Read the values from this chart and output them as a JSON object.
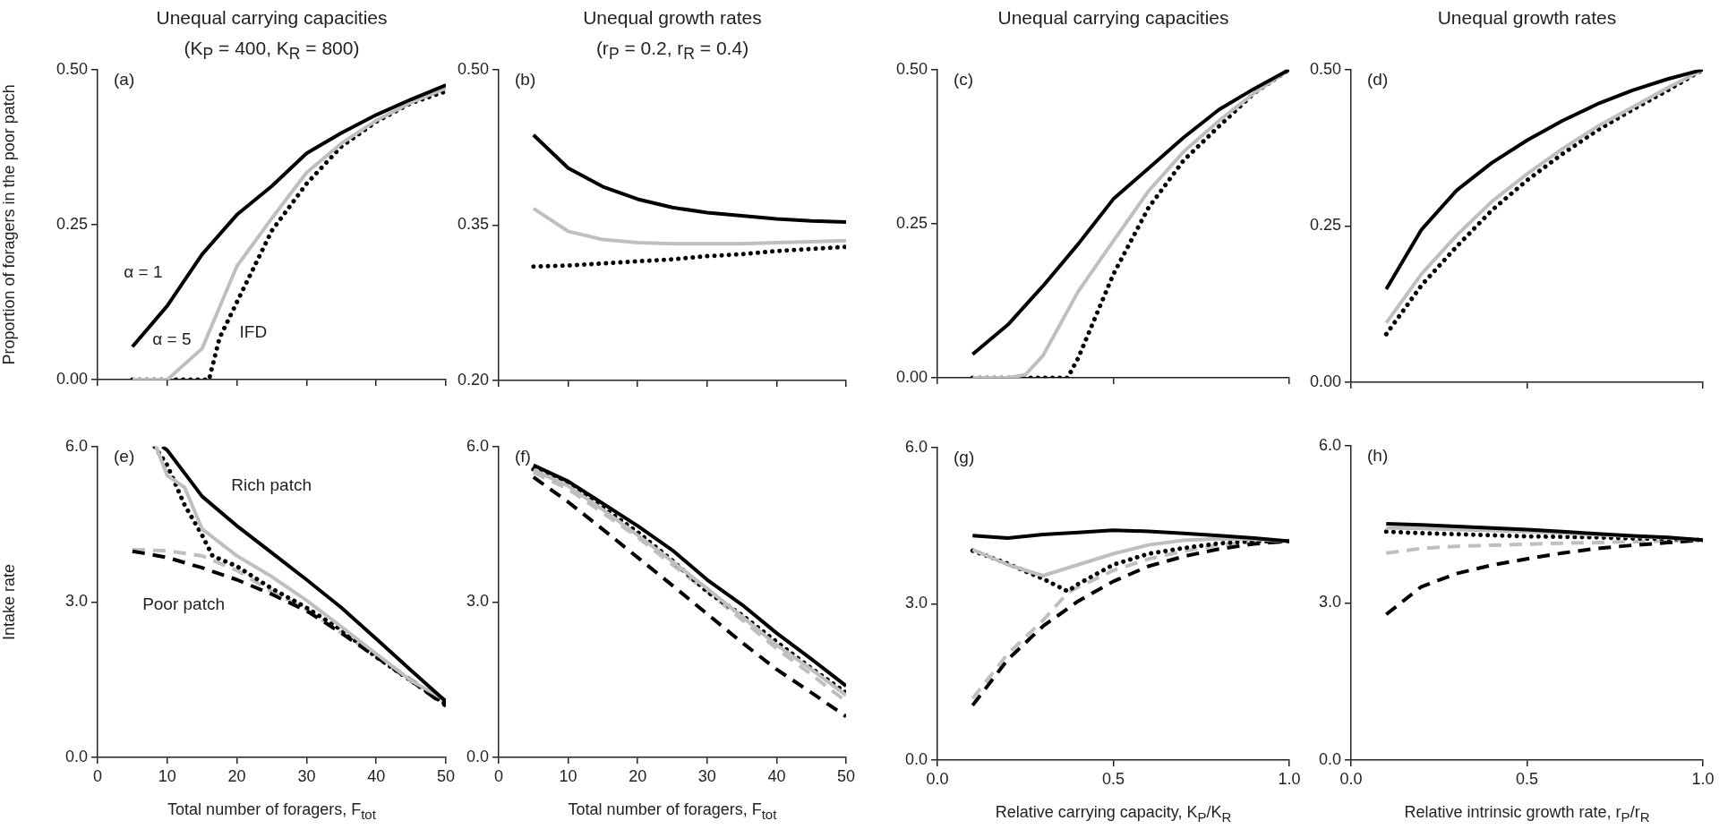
{
  "chart_data": [
    {
      "type": "line",
      "title": "Unequal carrying capacities",
      "subtitle": "(K$_{P}$ = 400, K$_{R}$ = 800)",
      "ylabel": "Proportion of foragers in the poor patch",
      "x": [
        5,
        10,
        15,
        20,
        25,
        30,
        35,
        40,
        45,
        50
      ],
      "xlim": [
        0,
        50
      ],
      "xticks": [
        0,
        10,
        20,
        30,
        40,
        50
      ],
      "ylim": [
        0,
        0.5
      ],
      "yticks": [
        {
          "value": 0,
          "label": "0.00"
        },
        {
          "value": 0.25,
          "label": "0.25"
        },
        {
          "value": 0.5,
          "label": "0.50"
        }
      ],
      "tick_labels": "y",
      "annotations": [
        "(a)",
        "α = 1",
        "α = 5",
        "IFD"
      ],
      "series": [
        {
          "color": "#000000",
          "line_style": "solid",
          "values": [
            0.053,
            0.119,
            0.202,
            0.266,
            0.312,
            0.365,
            0.398,
            0.427,
            0.452,
            0.475
          ]
        },
        {
          "color": "#bfbfbf",
          "line_style": "solid",
          "values": [
            0,
            0,
            0.05,
            0.183,
            0.26,
            0.334,
            0.381,
            0.418,
            0.447,
            0.47
          ]
        },
        {
          "color": "#000000",
          "line_style": "dotted",
          "x": [
            5,
            10,
            15,
            16,
            17.5,
            20,
            25,
            30,
            35,
            40,
            45,
            50
          ],
          "values": [
            0,
            0,
            0,
            0,
            0.067,
            0.125,
            0.24,
            0.316,
            0.376,
            0.416,
            0.446,
            0.465
          ]
        }
      ]
    },
    {
      "type": "line",
      "title": "Unequal growth rates",
      "subtitle": "(r$_{P}$ = 0.2, r$_{R}$ = 0.4)",
      "x": [
        5,
        10,
        15,
        20,
        25,
        30,
        35,
        40,
        45,
        50
      ],
      "xlim": [
        0,
        50
      ],
      "xticks": [
        0,
        10,
        20,
        30,
        40,
        50
      ],
      "ylim": [
        0.2,
        0.5
      ],
      "yticks": [
        {
          "value": 0.2,
          "label": "0.20"
        },
        {
          "value": 0.35,
          "label": "0.35"
        },
        {
          "value": 0.5,
          "label": "0.50"
        }
      ],
      "tick_labels": "y",
      "annotations": [
        "(b)"
      ],
      "series": [
        {
          "color": "#000000",
          "line_style": "solid",
          "values": [
            0.437,
            0.405,
            0.387,
            0.375,
            0.367,
            0.362,
            0.359,
            0.356,
            0.354,
            0.353
          ]
        },
        {
          "color": "#bfbfbf",
          "line_style": "solid",
          "values": [
            0.366,
            0.344,
            0.336,
            0.333,
            0.332,
            0.332,
            0.332,
            0.333,
            0.334,
            0.335
          ]
        },
        {
          "color": "#000000",
          "line_style": "dotted",
          "values": [
            0.31,
            0.311,
            0.313,
            0.315,
            0.317,
            0.32,
            0.322,
            0.325,
            0.327,
            0.329
          ]
        }
      ]
    },
    {
      "type": "line",
      "title": "Unequal carrying capacities",
      "x": [
        0.1,
        0.2,
        0.3,
        0.4,
        0.5,
        0.6,
        0.7,
        0.8,
        0.9,
        1.0
      ],
      "xlim": [
        0,
        1
      ],
      "xticks": [
        0,
        0.5,
        1
      ],
      "ylim": [
        0,
        0.5
      ],
      "yticks": [
        {
          "value": 0,
          "label": "0.00"
        },
        {
          "value": 0.25,
          "label": "0.25"
        },
        {
          "value": 0.5,
          "label": "0.50"
        }
      ],
      "tick_labels": "y",
      "annotations": [
        "(c)"
      ],
      "series": [
        {
          "color": "#000000",
          "line_style": "solid",
          "values": [
            0.038,
            0.086,
            0.149,
            0.217,
            0.29,
            0.34,
            0.39,
            0.435,
            0.469,
            0.5
          ]
        },
        {
          "color": "#bfbfbf",
          "line_style": "solid",
          "x": [
            0.1,
            0.2,
            0.25,
            0.3,
            0.4,
            0.5,
            0.6,
            0.7,
            0.8,
            0.9,
            1.0
          ],
          "values": [
            0,
            0,
            0.005,
            0.036,
            0.14,
            0.222,
            0.303,
            0.367,
            0.417,
            0.462,
            0.5
          ]
        },
        {
          "color": "#000000",
          "line_style": "dotted",
          "x": [
            0.1,
            0.2,
            0.3,
            0.37,
            0.4,
            0.5,
            0.6,
            0.7,
            0.8,
            0.9,
            1.0
          ],
          "values": [
            0,
            0,
            0,
            0,
            0.032,
            0.168,
            0.276,
            0.353,
            0.408,
            0.462,
            0.5
          ]
        }
      ]
    },
    {
      "type": "line",
      "title": "Unequal growth rates",
      "x": [
        0.1,
        0.2,
        0.3,
        0.4,
        0.5,
        0.6,
        0.7,
        0.8,
        0.9,
        1.0
      ],
      "xlim": [
        0,
        1
      ],
      "xticks": [
        0,
        0.5,
        1
      ],
      "ylim": [
        0,
        0.5
      ],
      "yticks": [
        {
          "value": 0,
          "label": "0.00"
        },
        {
          "value": 0.25,
          "label": "0.25"
        },
        {
          "value": 0.5,
          "label": "0.50"
        }
      ],
      "tick_labels": "y",
      "annotations": [
        "(d)"
      ],
      "series": [
        {
          "color": "#000000",
          "line_style": "solid",
          "values": [
            0.149,
            0.244,
            0.307,
            0.351,
            0.387,
            0.418,
            0.445,
            0.467,
            0.485,
            0.5
          ]
        },
        {
          "color": "#bfbfbf",
          "line_style": "solid",
          "values": [
            0.095,
            0.173,
            0.235,
            0.289,
            0.333,
            0.373,
            0.409,
            0.44,
            0.471,
            0.5
          ]
        },
        {
          "color": "#000000",
          "line_style": "dotted",
          "values": [
            0.077,
            0.155,
            0.217,
            0.275,
            0.323,
            0.365,
            0.403,
            0.436,
            0.467,
            0.5
          ]
        }
      ]
    },
    {
      "type": "line",
      "xlabel": "Total number of foragers, F$_{tot}$",
      "ylabel": "Intake rate",
      "x": [
        5,
        10,
        15,
        20,
        25,
        30,
        35,
        40,
        45,
        50
      ],
      "xlim": [
        0,
        50
      ],
      "xticks": [
        0,
        10,
        20,
        30,
        40,
        50
      ],
      "ylim": [
        0,
        6
      ],
      "yticks": [
        {
          "value": 0,
          "label": "0.0"
        },
        {
          "value": 3,
          "label": "3.0"
        },
        {
          "value": 6,
          "label": "6.0"
        }
      ],
      "annotations": [
        "(e)",
        "Rich patch",
        "Poor patch"
      ],
      "series": [
        {
          "color": "#000000",
          "line_style": "solid",
          "x": [
            9.3,
            10,
            15,
            20,
            25,
            30,
            35,
            40,
            45,
            50
          ],
          "values": [
            6.0,
            5.93,
            5.04,
            4.47,
            3.95,
            3.43,
            2.89,
            2.29,
            1.68,
            1.08
          ]
        },
        {
          "color": "#bfbfbf",
          "line_style": "solid",
          "x": [
            8.4,
            10,
            12.5,
            15,
            20,
            25,
            30,
            35,
            40,
            45,
            50
          ],
          "values": [
            6.0,
            5.44,
            5.21,
            4.41,
            3.89,
            3.49,
            3.03,
            2.52,
            2.0,
            1.48,
            1.1
          ]
        },
        {
          "color": "#000000",
          "line_style": "dotted",
          "x": [
            8.2,
            10,
            12.5,
            15,
            16.5,
            20,
            25,
            30,
            35,
            40,
            45,
            50
          ],
          "values": [
            6.0,
            5.64,
            4.87,
            4.29,
            3.89,
            3.69,
            3.26,
            2.89,
            2.46,
            1.94,
            1.48,
            1.02
          ]
        },
        {
          "color": "#000000",
          "line_style": "dashed",
          "values": [
            3.98,
            3.86,
            3.66,
            3.43,
            3.15,
            2.83,
            2.4,
            1.94,
            1.48,
            0.99
          ]
        },
        {
          "color": "#bfbfbf",
          "line_style": "dashed",
          "values": [
            4.01,
            3.99,
            3.89,
            3.61,
            3.2,
            2.86,
            2.4,
            1.97,
            1.51,
            1.05
          ]
        }
      ]
    },
    {
      "type": "line",
      "xlabel": "Total number of foragers, F$_{tot}$",
      "x": [
        5,
        10,
        15,
        20,
        25,
        30,
        35,
        40,
        45,
        50
      ],
      "xlim": [
        0,
        50
      ],
      "xticks": [
        0,
        10,
        20,
        30,
        40,
        50
      ],
      "ylim": [
        0,
        6
      ],
      "yticks": [
        {
          "value": 0,
          "label": "0.0"
        },
        {
          "value": 3,
          "label": "3.0"
        },
        {
          "value": 6,
          "label": "6.0"
        }
      ],
      "annotations": [
        "(f)"
      ],
      "series": [
        {
          "color": "#000000",
          "line_style": "solid",
          "values": [
            5.64,
            5.33,
            4.9,
            4.47,
            4.0,
            3.43,
            2.95,
            2.4,
            1.9,
            1.38
          ]
        },
        {
          "color": "#bfbfbf",
          "line_style": "solid",
          "values": [
            5.55,
            5.24,
            4.78,
            4.29,
            3.78,
            3.26,
            2.72,
            2.17,
            1.7,
            1.2
          ]
        },
        {
          "color": "#000000",
          "line_style": "dotted",
          "values": [
            5.56,
            5.27,
            4.82,
            4.35,
            3.8,
            3.2,
            2.75,
            2.23,
            1.72,
            1.25
          ]
        },
        {
          "color": "#000000",
          "line_style": "dashed",
          "values": [
            5.41,
            4.93,
            4.4,
            3.86,
            3.32,
            2.77,
            2.22,
            1.7,
            1.25,
            0.79
          ]
        },
        {
          "color": "#bfbfbf",
          "line_style": "dashed",
          "values": [
            5.5,
            5.18,
            4.72,
            4.25,
            3.72,
            3.2,
            2.66,
            2.1,
            1.6,
            1.08
          ]
        }
      ]
    },
    {
      "type": "line",
      "xlabel": "Relative carrying capacity, K$_{P}$/K$_{R}$",
      "x": [
        0.1,
        0.2,
        0.3,
        0.4,
        0.5,
        0.6,
        0.7,
        0.8,
        0.9,
        1.0
      ],
      "xlim": [
        0,
        1
      ],
      "xticks": [
        {
          "value": 0,
          "label": "0.0"
        },
        {
          "value": 0.5,
          "label": "0.5"
        },
        {
          "value": 1,
          "label": "1.0"
        }
      ],
      "ylim": [
        0,
        6
      ],
      "yticks": [
        {
          "value": 0,
          "label": "0.0"
        },
        {
          "value": 3,
          "label": "3.0"
        },
        {
          "value": 6,
          "label": "6.0"
        }
      ],
      "annotations": [
        "(g)"
      ],
      "series": [
        {
          "color": "#000000",
          "line_style": "solid",
          "values": [
            4.31,
            4.26,
            4.33,
            4.37,
            4.41,
            4.39,
            4.35,
            4.31,
            4.26,
            4.2
          ]
        },
        {
          "color": "#bfbfbf",
          "line_style": "solid",
          "values": [
            4.04,
            3.75,
            3.54,
            3.75,
            3.96,
            4.13,
            4.22,
            4.25,
            4.24,
            4.2
          ]
        },
        {
          "color": "#000000",
          "line_style": "dotted",
          "x": [
            0.1,
            0.2,
            0.3,
            0.37,
            0.4,
            0.5,
            0.6,
            0.7,
            0.8,
            0.9,
            1.0
          ],
          "values": [
            4.02,
            3.77,
            3.48,
            3.24,
            3.38,
            3.75,
            3.96,
            4.07,
            4.16,
            4.2,
            4.2
          ]
        },
        {
          "color": "#000000",
          "line_style": "dashed",
          "values": [
            1.05,
            1.93,
            2.57,
            3.05,
            3.43,
            3.72,
            3.91,
            4.05,
            4.15,
            4.2
          ]
        },
        {
          "color": "#bfbfbf",
          "line_style": "dashed",
          "x": [
            0.1,
            0.2,
            0.3,
            0.37,
            0.4,
            0.5,
            0.6,
            0.7,
            0.8,
            0.9,
            1.0
          ],
          "values": [
            1.18,
            2.04,
            2.68,
            3.21,
            3.32,
            3.64,
            3.86,
            4.01,
            4.13,
            4.18,
            4.2
          ]
        }
      ]
    },
    {
      "type": "line",
      "xlabel": "Relative intrinsic growth rate, r$_{P}$/r$_{R}$",
      "x": [
        0.1,
        0.2,
        0.3,
        0.4,
        0.5,
        0.6,
        0.7,
        0.8,
        0.9,
        1.0
      ],
      "xlim": [
        0,
        1
      ],
      "xticks": [
        {
          "value": 0,
          "label": "0.0"
        },
        {
          "value": 0.5,
          "label": "0.5"
        },
        {
          "value": 1,
          "label": "1.0"
        }
      ],
      "ylim": [
        0,
        6
      ],
      "yticks": [
        {
          "value": 0,
          "label": "0.0"
        },
        {
          "value": 3,
          "label": "3.0"
        },
        {
          "value": 6,
          "label": "6.0"
        }
      ],
      "annotations": [
        "(h)"
      ],
      "series": [
        {
          "color": "#000000",
          "line_style": "solid",
          "values": [
            4.51,
            4.49,
            4.46,
            4.43,
            4.4,
            4.36,
            4.32,
            4.28,
            4.25,
            4.2
          ]
        },
        {
          "color": "#bfbfbf",
          "line_style": "solid",
          "values": [
            4.43,
            4.42,
            4.4,
            4.38,
            4.36,
            4.33,
            4.3,
            4.27,
            4.24,
            4.2
          ]
        },
        {
          "color": "#000000",
          "line_style": "dotted",
          "values": [
            4.36,
            4.33,
            4.31,
            4.29,
            4.27,
            4.26,
            4.25,
            4.23,
            4.22,
            4.2
          ]
        },
        {
          "color": "#000000",
          "line_style": "dashed",
          "values": [
            2.78,
            3.31,
            3.56,
            3.72,
            3.84,
            3.95,
            4.04,
            4.1,
            4.15,
            4.2
          ]
        },
        {
          "color": "#bfbfbf",
          "line_style": "dashed",
          "values": [
            3.95,
            4.04,
            4.08,
            4.1,
            4.12,
            4.14,
            4.15,
            4.17,
            4.18,
            4.2
          ]
        }
      ]
    }
  ]
}
